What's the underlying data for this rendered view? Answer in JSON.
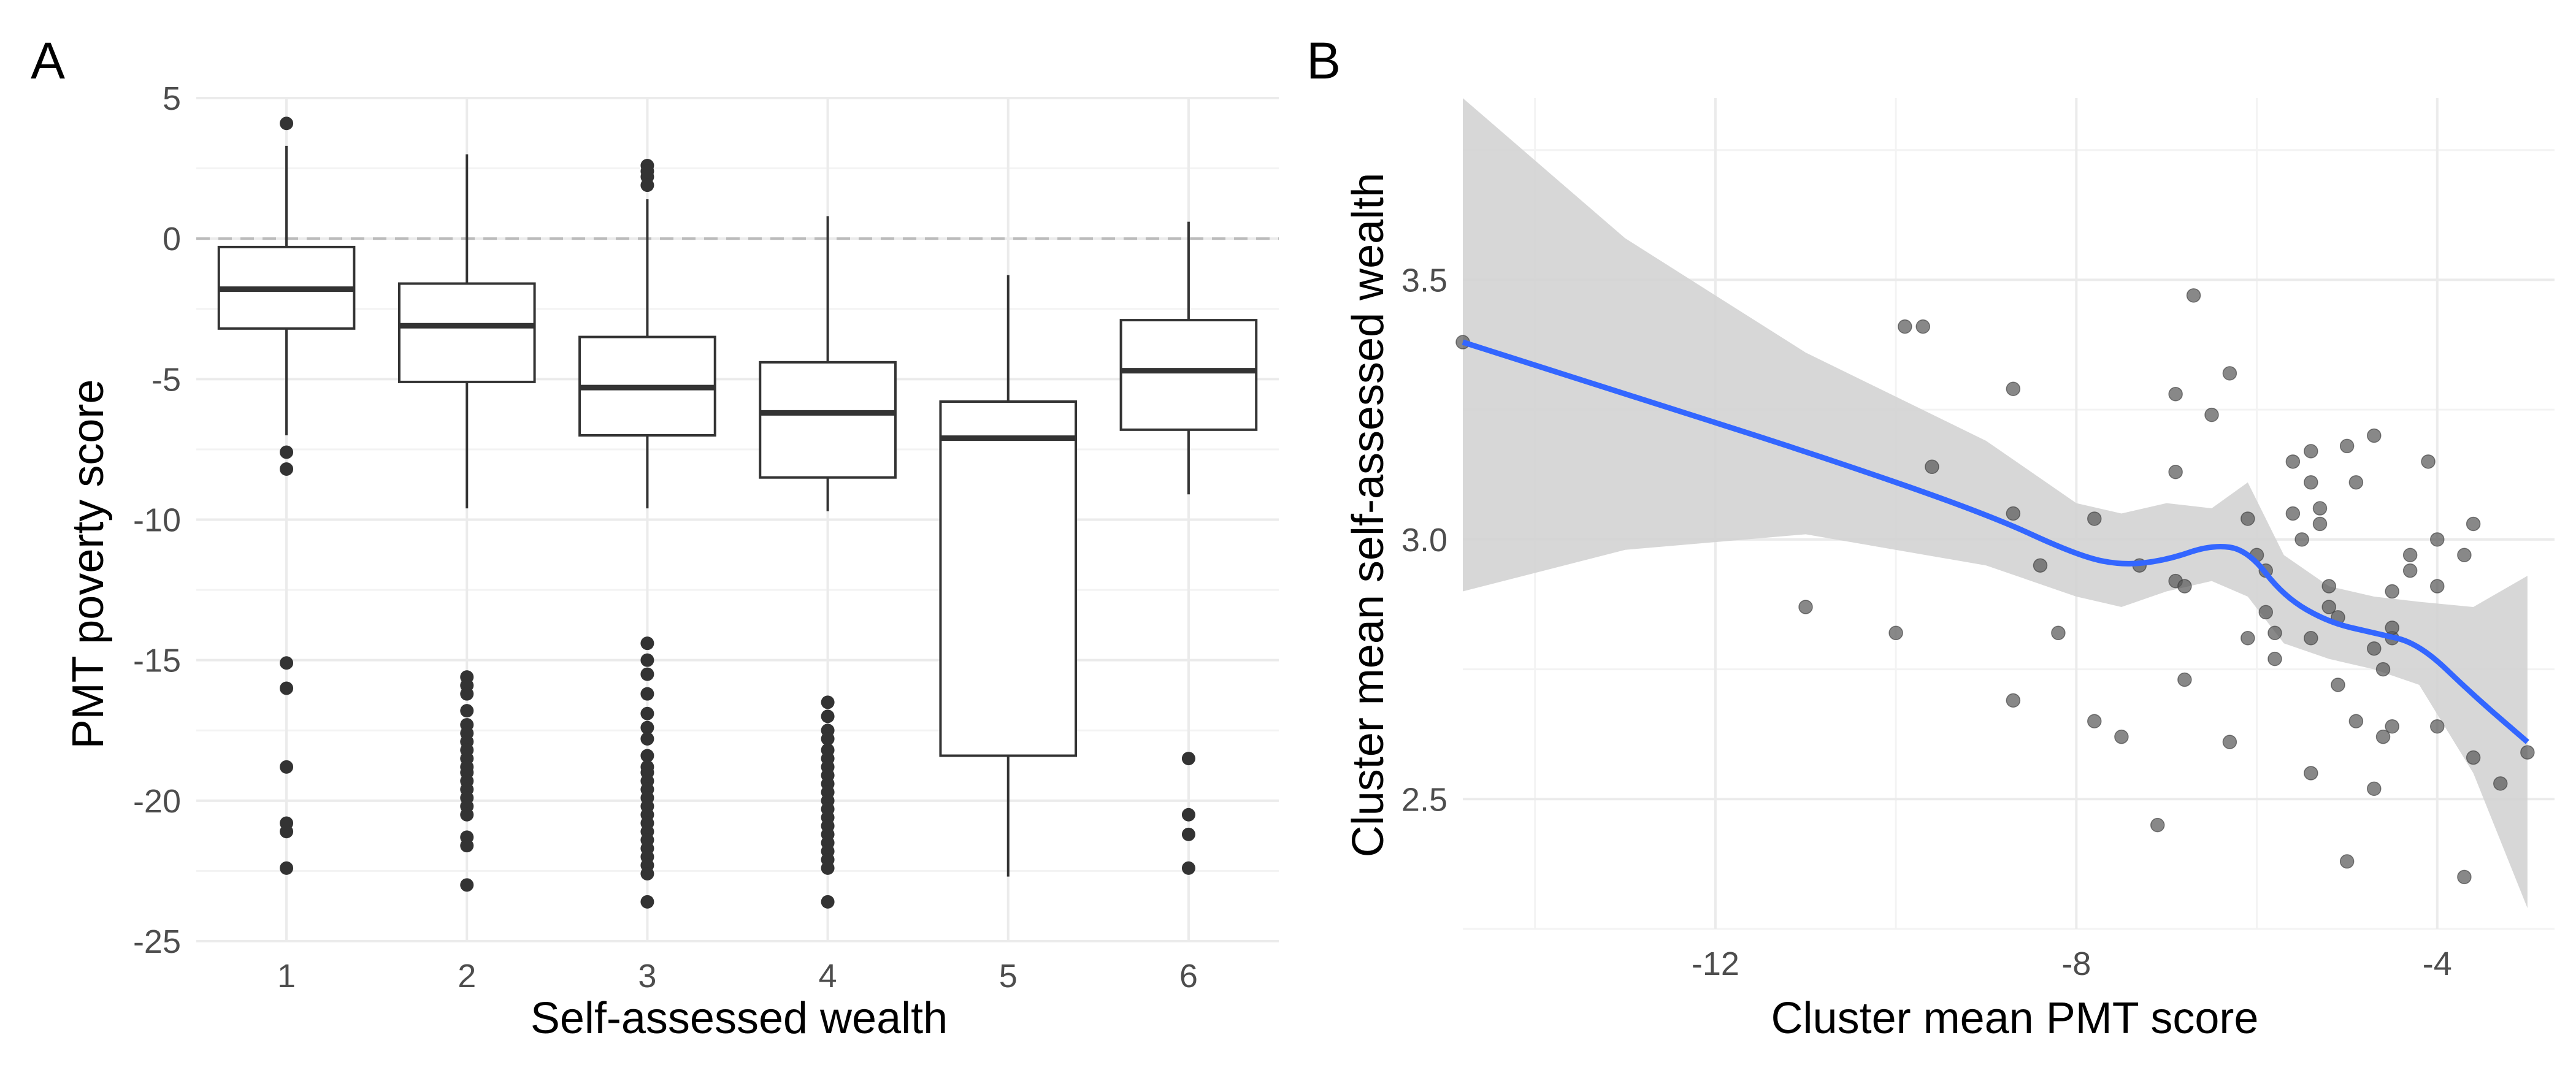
{
  "chart_data": [
    {
      "panel": "A",
      "type": "boxplot",
      "xlabel": "Self-assessed wealth",
      "ylabel": "PMT poverty score",
      "categories": [
        "1",
        "2",
        "3",
        "4",
        "5",
        "6"
      ],
      "ylim": [
        -25,
        5
      ],
      "yticks": [
        5,
        0,
        -5,
        -10,
        -15,
        -20,
        -25
      ],
      "grid": true,
      "reference_line": {
        "y": 0,
        "style": "dashed"
      },
      "boxes": [
        {
          "category": "1",
          "whisker_low": -7.0,
          "q1": -3.2,
          "median": -1.8,
          "q3": -0.3,
          "whisker_high": 3.3,
          "outliers": [
            4.1,
            -7.6,
            -8.2,
            -15.1,
            -16.0,
            -18.8,
            -20.8,
            -21.1,
            -22.4
          ]
        },
        {
          "category": "2",
          "whisker_low": -9.6,
          "q1": -5.1,
          "median": -3.1,
          "q3": -1.6,
          "whisker_high": 3.0,
          "outliers": [
            -15.6,
            -15.9,
            -16.2,
            -16.8,
            -17.3,
            -17.6,
            -17.9,
            -18.2,
            -18.5,
            -18.8,
            -19.0,
            -19.3,
            -19.6,
            -19.9,
            -20.2,
            -20.5,
            -21.3,
            -21.6,
            -23.0
          ]
        },
        {
          "category": "3",
          "whisker_low": -9.6,
          "q1": -7.0,
          "median": -5.3,
          "q3": -3.5,
          "whisker_high": 1.4,
          "outliers": [
            2.6,
            2.4,
            2.2,
            1.9,
            -14.4,
            -15.0,
            -15.5,
            -16.2,
            -16.9,
            -17.4,
            -17.8,
            -18.4,
            -18.8,
            -19.0,
            -19.3,
            -19.6,
            -19.9,
            -20.2,
            -20.5,
            -20.8,
            -21.1,
            -21.4,
            -21.7,
            -22.0,
            -22.3,
            -22.6,
            -23.6
          ]
        },
        {
          "category": "4",
          "whisker_low": -9.7,
          "q1": -8.5,
          "median": -6.2,
          "q3": -4.4,
          "whisker_high": 0.8,
          "outliers": [
            -16.5,
            -17.0,
            -17.5,
            -17.8,
            -18.2,
            -18.5,
            -18.8,
            -19.1,
            -19.4,
            -19.7,
            -20.0,
            -20.3,
            -20.6,
            -20.9,
            -21.2,
            -21.5,
            -21.8,
            -22.1,
            -22.4,
            -23.6
          ]
        },
        {
          "category": "5",
          "whisker_low": -22.7,
          "q1": -18.4,
          "median": -7.1,
          "q3": -5.8,
          "whisker_high": -1.3,
          "outliers": []
        },
        {
          "category": "6",
          "whisker_low": -9.1,
          "q1": -6.8,
          "median": -4.7,
          "q3": -2.9,
          "whisker_high": 0.6,
          "outliers": [
            -18.5,
            -20.5,
            -21.2,
            -22.4
          ]
        }
      ]
    },
    {
      "panel": "B",
      "type": "scatter",
      "xlabel": "Cluster mean PMT score",
      "ylabel": "Cluster mean self-assessed wealth",
      "xlim": [
        -14.8,
        -2.7
      ],
      "ylim": [
        2.25,
        3.85
      ],
      "xticks": [
        -12,
        -8,
        -4
      ],
      "yticks": [
        2.5,
        3.0,
        3.5
      ],
      "grid": true,
      "points": [
        {
          "x": -14.8,
          "y": 3.38
        },
        {
          "x": -9.9,
          "y": 3.41
        },
        {
          "x": -9.7,
          "y": 3.41
        },
        {
          "x": -9.6,
          "y": 3.14
        },
        {
          "x": -11.0,
          "y": 2.87
        },
        {
          "x": -10.0,
          "y": 2.82
        },
        {
          "x": -8.7,
          "y": 3.29
        },
        {
          "x": -8.7,
          "y": 3.05
        },
        {
          "x": -8.7,
          "y": 2.69
        },
        {
          "x": -8.4,
          "y": 2.95
        },
        {
          "x": -8.2,
          "y": 2.82
        },
        {
          "x": -7.8,
          "y": 3.04
        },
        {
          "x": -7.8,
          "y": 2.65
        },
        {
          "x": -7.5,
          "y": 2.62
        },
        {
          "x": -7.3,
          "y": 2.95
        },
        {
          "x": -7.1,
          "y": 2.45
        },
        {
          "x": -6.9,
          "y": 3.13
        },
        {
          "x": -6.9,
          "y": 3.28
        },
        {
          "x": -6.7,
          "y": 3.47
        },
        {
          "x": -6.5,
          "y": 3.24
        },
        {
          "x": -6.9,
          "y": 2.92
        },
        {
          "x": -6.8,
          "y": 2.91
        },
        {
          "x": -6.8,
          "y": 2.73
        },
        {
          "x": -6.3,
          "y": 3.32
        },
        {
          "x": -6.3,
          "y": 2.61
        },
        {
          "x": -6.1,
          "y": 3.04
        },
        {
          "x": -6.0,
          "y": 2.97
        },
        {
          "x": -5.9,
          "y": 2.94
        },
        {
          "x": -5.9,
          "y": 2.86
        },
        {
          "x": -6.1,
          "y": 2.81
        },
        {
          "x": -5.8,
          "y": 2.82
        },
        {
          "x": -5.8,
          "y": 2.77
        },
        {
          "x": -5.6,
          "y": 3.15
        },
        {
          "x": -5.6,
          "y": 3.05
        },
        {
          "x": -5.5,
          "y": 3.0
        },
        {
          "x": -5.4,
          "y": 3.17
        },
        {
          "x": -5.4,
          "y": 3.11
        },
        {
          "x": -5.3,
          "y": 3.06
        },
        {
          "x": -5.3,
          "y": 3.03
        },
        {
          "x": -5.2,
          "y": 2.91
        },
        {
          "x": -5.2,
          "y": 2.87
        },
        {
          "x": -5.1,
          "y": 2.85
        },
        {
          "x": -5.4,
          "y": 2.81
        },
        {
          "x": -5.4,
          "y": 2.55
        },
        {
          "x": -5.1,
          "y": 2.72
        },
        {
          "x": -5.0,
          "y": 3.18
        },
        {
          "x": -4.9,
          "y": 3.11
        },
        {
          "x": -4.9,
          "y": 2.65
        },
        {
          "x": -5.0,
          "y": 2.38
        },
        {
          "x": -4.7,
          "y": 3.2
        },
        {
          "x": -4.7,
          "y": 2.79
        },
        {
          "x": -4.6,
          "y": 2.75
        },
        {
          "x": -4.5,
          "y": 2.81
        },
        {
          "x": -4.5,
          "y": 2.83
        },
        {
          "x": -4.6,
          "y": 2.62
        },
        {
          "x": -4.5,
          "y": 2.64
        },
        {
          "x": -4.7,
          "y": 2.52
        },
        {
          "x": -4.3,
          "y": 2.97
        },
        {
          "x": -4.3,
          "y": 2.94
        },
        {
          "x": -4.1,
          "y": 3.15
        },
        {
          "x": -4.0,
          "y": 3.0
        },
        {
          "x": -4.0,
          "y": 2.91
        },
        {
          "x": -4.0,
          "y": 2.64
        },
        {
          "x": -3.6,
          "y": 3.03
        },
        {
          "x": -3.7,
          "y": 2.97
        },
        {
          "x": -3.6,
          "y": 2.58
        },
        {
          "x": -3.3,
          "y": 2.53
        },
        {
          "x": -3.7,
          "y": 2.35
        },
        {
          "x": -3.0,
          "y": 2.59
        },
        {
          "x": -4.5,
          "y": 2.9
        }
      ],
      "smooth": [
        {
          "x": -14.8,
          "y": 3.38,
          "lo": 3.85,
          "hi_lo_note": "",
          "lower": 2.9,
          "upper": 3.85
        },
        {
          "x": -13.0,
          "y": 3.28,
          "lower": 2.98,
          "upper": 3.58
        },
        {
          "x": -11.0,
          "y": 3.17,
          "lower": 3.01,
          "upper": 3.36
        },
        {
          "x": -9.0,
          "y": 3.05,
          "lower": 2.95,
          "upper": 3.19
        },
        {
          "x": -8.0,
          "y": 2.97,
          "lower": 2.89,
          "upper": 3.07
        },
        {
          "x": -7.5,
          "y": 2.95,
          "lower": 2.87,
          "upper": 3.05
        },
        {
          "x": -7.0,
          "y": 2.96,
          "lower": 2.9,
          "upper": 3.07
        },
        {
          "x": -6.5,
          "y": 2.99,
          "lower": 2.92,
          "upper": 3.06
        },
        {
          "x": -6.1,
          "y": 2.98,
          "lower": 2.89,
          "upper": 3.11
        },
        {
          "x": -5.7,
          "y": 2.89,
          "lower": 2.8,
          "upper": 2.97
        },
        {
          "x": -5.2,
          "y": 2.84,
          "lower": 2.77,
          "upper": 2.91
        },
        {
          "x": -4.7,
          "y": 2.82,
          "lower": 2.75,
          "upper": 2.89
        },
        {
          "x": -4.2,
          "y": 2.8,
          "lower": 2.72,
          "upper": 2.88
        },
        {
          "x": -3.6,
          "y": 2.7,
          "lower": 2.55,
          "upper": 2.87
        },
        {
          "x": -3.0,
          "y": 2.61,
          "lower": 2.29,
          "upper": 2.93
        }
      ],
      "smooth_color": "#3366ff",
      "ribbon_color": "#d3d3d3",
      "point_color": "#555555"
    }
  ],
  "panel_labels": [
    "A",
    "B"
  ],
  "colors": {
    "grid": "#ebebeb",
    "box_stroke": "#333333",
    "ref_line": "#bbbbbb"
  }
}
